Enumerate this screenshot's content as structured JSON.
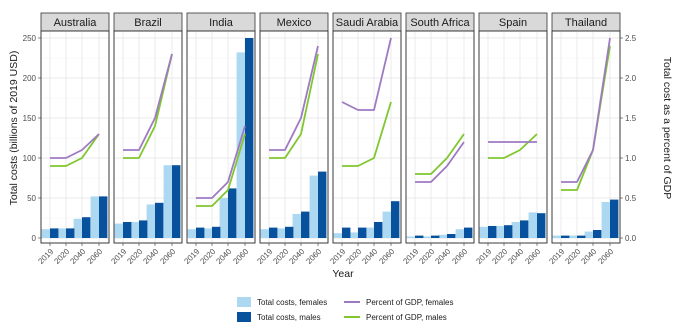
{
  "chart_data": {
    "type": "bar",
    "layout": "faceted",
    "x_tick_labels": [
      "2019",
      "2020",
      "2040",
      "2060"
    ],
    "xlabel": "Year",
    "ylabel_left": "Total costs (billions of 2019 USD)",
    "ylabel_right": "Total cost as a percent of GDP",
    "ylim_left": [
      -5,
      262
    ],
    "yticks_left": [
      "0",
      "50",
      "100",
      "150",
      "200",
      "250"
    ],
    "ylim_right": [
      -0.05,
      2.62
    ],
    "yticks_right": [
      "0.0",
      "0.5",
      "1.0",
      "1.5",
      "2.0",
      "2.5"
    ],
    "grid": true,
    "legend_position": "bottom",
    "colors": {
      "female_bar": "#add8f2",
      "male_bar": "#08519c",
      "female_line": "#9e7ac2",
      "male_line": "#80c62e"
    },
    "legend": {
      "female_bar": "Total costs, females",
      "male_bar": "Total costs, males",
      "female_line": "Percent of GDP, females",
      "male_line": "Percent of GDP, males"
    },
    "panels": [
      {
        "name": "Australia",
        "costs_female": [
          11,
          12,
          24,
          52
        ],
        "costs_male": [
          12,
          12,
          26,
          52
        ],
        "gdp_female": [
          1.0,
          1.0,
          1.1,
          1.3
        ],
        "gdp_male": [
          0.9,
          0.9,
          1.0,
          1.3
        ]
      },
      {
        "name": "Brazil",
        "costs_female": [
          18,
          20,
          42,
          91
        ],
        "costs_male": [
          20,
          22,
          44,
          91
        ],
        "gdp_female": [
          1.1,
          1.1,
          1.5,
          2.3
        ],
        "gdp_male": [
          1.0,
          1.0,
          1.4,
          2.3
        ]
      },
      {
        "name": "India",
        "costs_female": [
          11,
          12,
          50,
          232
        ],
        "costs_male": [
          13,
          14,
          62,
          250
        ],
        "gdp_female": [
          0.5,
          0.5,
          0.7,
          1.4
        ],
        "gdp_male": [
          0.4,
          0.4,
          0.6,
          1.3
        ]
      },
      {
        "name": "Mexico",
        "costs_female": [
          11,
          12,
          30,
          78
        ],
        "costs_male": [
          13,
          14,
          33,
          83
        ],
        "gdp_female": [
          1.1,
          1.1,
          1.5,
          2.4
        ],
        "gdp_male": [
          1.0,
          1.0,
          1.3,
          2.3
        ]
      },
      {
        "name": "Saudi Arabia",
        "costs_female": [
          6,
          7,
          13,
          33
        ],
        "costs_male": [
          13,
          13,
          20,
          46
        ],
        "gdp_female": [
          1.7,
          1.6,
          1.6,
          2.5
        ],
        "gdp_male": [
          0.9,
          0.9,
          1.0,
          1.7
        ]
      },
      {
        "name": "South Africa",
        "costs_female": [
          2,
          2,
          4,
          11
        ],
        "costs_male": [
          3,
          3,
          5,
          13
        ],
        "gdp_female": [
          0.7,
          0.7,
          0.9,
          1.2
        ],
        "gdp_male": [
          0.8,
          0.8,
          1.0,
          1.3
        ]
      },
      {
        "name": "Spain",
        "costs_female": [
          14,
          15,
          20,
          32
        ],
        "costs_male": [
          15,
          16,
          22,
          31
        ],
        "gdp_female": [
          1.2,
          1.2,
          1.2,
          1.2
        ],
        "gdp_male": [
          1.0,
          1.0,
          1.1,
          1.3
        ]
      },
      {
        "name": "Thailand",
        "costs_female": [
          3,
          3,
          8,
          45
        ],
        "costs_male": [
          3,
          3,
          10,
          48
        ],
        "gdp_female": [
          0.7,
          0.7,
          1.1,
          2.5
        ],
        "gdp_male": [
          0.6,
          0.6,
          1.1,
          2.4
        ]
      }
    ]
  }
}
